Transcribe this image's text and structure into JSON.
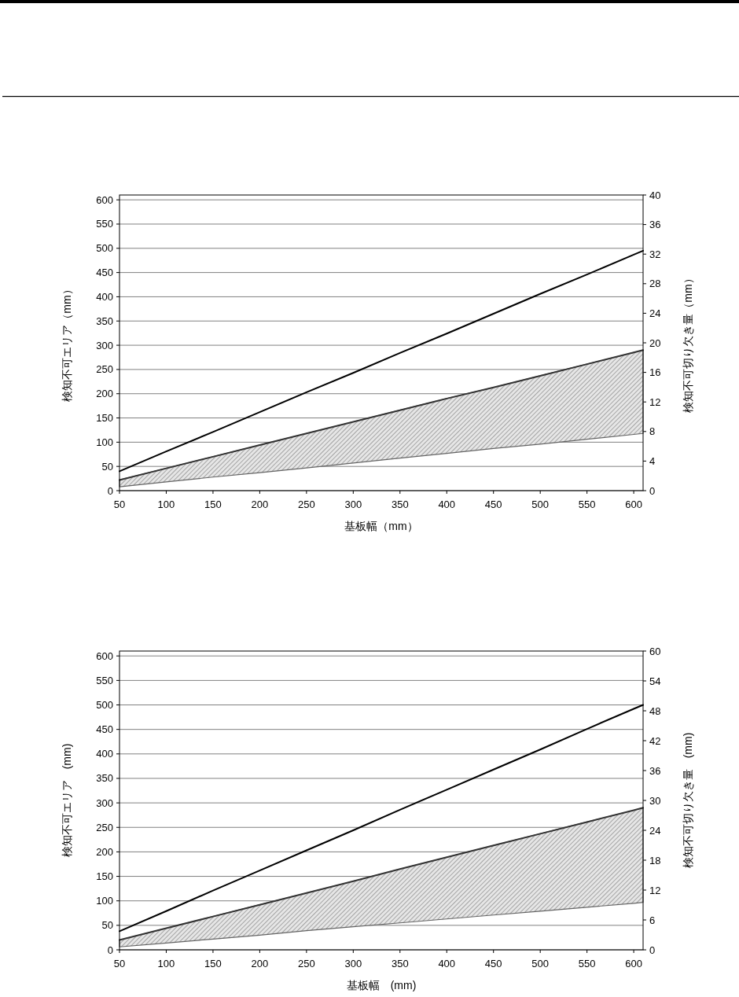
{
  "chart_data": [
    {
      "type": "line",
      "xlabel": "基板幅（mm）",
      "ylabel": "検知不可エリア（mm）",
      "y2label": "検知不可切り欠き量（mm）",
      "x": [
        50,
        100,
        150,
        200,
        250,
        300,
        350,
        400,
        450,
        500,
        550,
        600,
        610
      ],
      "series": [
        {
          "color": "#000000",
          "values": [
            40,
            81,
            121,
            162,
            203,
            243,
            284,
            324,
            365,
            406,
            446,
            487,
            495
          ]
        },
        {
          "color": "#333333",
          "values": [
            22,
            46,
            70,
            94,
            118,
            142,
            166,
            190,
            213,
            237,
            261,
            285,
            290
          ],
          "lower": [
            8,
            18,
            28,
            37,
            47,
            57,
            67,
            77,
            87,
            96,
            106,
            116,
            118
          ],
          "upper": [
            22,
            46,
            70,
            94,
            118,
            142,
            166,
            190,
            213,
            237,
            261,
            285,
            290
          ]
        }
      ],
      "xlim": [
        50,
        610
      ],
      "xticks": [
        50,
        100,
        150,
        200,
        250,
        300,
        350,
        400,
        450,
        500,
        550,
        600
      ],
      "ylim": [
        0,
        610
      ],
      "yticks": [
        0,
        50,
        100,
        150,
        200,
        250,
        300,
        350,
        400,
        450,
        500,
        550,
        600
      ],
      "y2lim": [
        0,
        40
      ],
      "y2ticks": [
        0,
        4,
        8,
        12,
        16,
        20,
        24,
        28,
        32,
        36,
        40
      ],
      "grid": "y"
    },
    {
      "type": "line",
      "xlabel": "基板幅　(mm)",
      "ylabel": "検知不可エリア　(mm)",
      "y2label": "検知不可切り欠き量　(mm)",
      "x": [
        50,
        100,
        150,
        200,
        250,
        300,
        350,
        400,
        450,
        500,
        550,
        600,
        610
      ],
      "series": [
        {
          "color": "#000000",
          "values": [
            38,
            79,
            121,
            162,
            203,
            244,
            286,
            327,
            368,
            409,
            451,
            492,
            500
          ]
        },
        {
          "color": "#333333",
          "values": [
            20,
            44,
            68,
            92,
            116,
            140,
            165,
            189,
            213,
            237,
            261,
            285,
            290
          ],
          "lower": [
            6,
            14,
            22,
            30,
            39,
            47,
            55,
            63,
            71,
            79,
            87,
            95,
            97
          ],
          "upper": [
            20,
            44,
            68,
            92,
            116,
            140,
            165,
            189,
            213,
            237,
            261,
            285,
            290
          ]
        }
      ],
      "xlim": [
        50,
        610
      ],
      "xticks": [
        50,
        100,
        150,
        200,
        250,
        300,
        350,
        400,
        450,
        500,
        550,
        600
      ],
      "ylim": [
        0,
        610
      ],
      "yticks": [
        0,
        50,
        100,
        150,
        200,
        250,
        300,
        350,
        400,
        450,
        500,
        550,
        600
      ],
      "y2lim": [
        0,
        60
      ],
      "y2ticks": [
        0,
        6,
        12,
        18,
        24,
        30,
        36,
        42,
        48,
        54,
        60
      ],
      "grid": "y"
    }
  ]
}
